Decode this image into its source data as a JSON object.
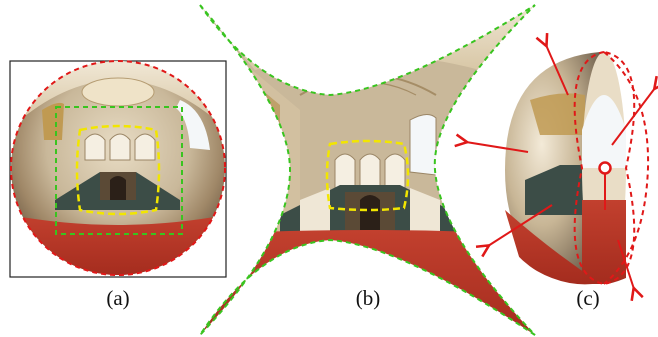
{
  "figure": {
    "panels": [
      {
        "id": "a",
        "caption": "(a)"
      },
      {
        "id": "b",
        "caption": "(b)"
      },
      {
        "id": "c",
        "caption": "(c)"
      }
    ]
  },
  "colors": {
    "green_outline": "#39c41f",
    "red_outline": "#e01818",
    "yellow_outline": "#f2e600",
    "red_arrow": "#e01818",
    "floor": "#b83525",
    "wall": "#d9cbb1",
    "stair": "#3c4d47",
    "window": "#eef4f8"
  }
}
